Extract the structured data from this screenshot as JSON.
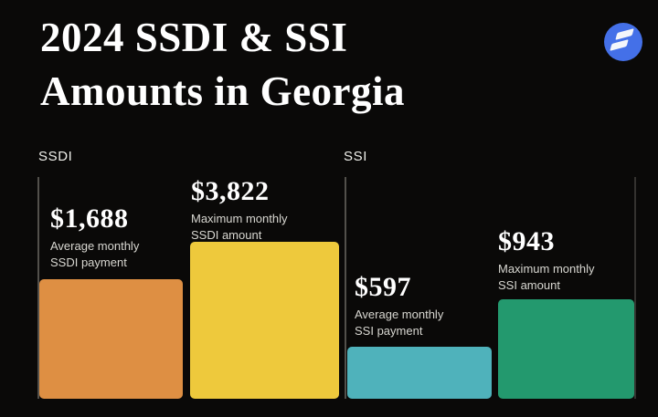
{
  "title": {
    "line1": "2024 SSDI & SSI",
    "line2": "Amounts in Georgia"
  },
  "colors": {
    "background": "#0A0908",
    "logo_blue": "#4470E8",
    "axis_line": "#52504B",
    "axis_line_right": "#34322F",
    "text_white": "#FFFFFF",
    "text_muted": "#D8D7D1"
  },
  "chart_data": {
    "type": "bar",
    "title": "2024 SSDI & SSI Amounts in Georgia",
    "legend": "none",
    "grid": false,
    "groups": [
      {
        "label": "SSDI",
        "bars": [
          {
            "value": 1688,
            "value_label": "$1,688",
            "description": [
              "Average monthly",
              "SSDI payment"
            ],
            "color": "#DE8F43"
          },
          {
            "value": 3822,
            "value_label": "$3,822",
            "description": [
              "Maximum monthly",
              "SSDI amount"
            ],
            "color": "#EEC93C"
          }
        ]
      },
      {
        "label": "SSI",
        "bars": [
          {
            "value": 597,
            "value_label": "$597",
            "description": [
              "Average monthly",
              "SSI payment"
            ],
            "color": "#4FB2BB"
          },
          {
            "value": 943,
            "value_label": "$943",
            "description": [
              "Maximum monthly",
              "SSI amount"
            ],
            "color": "#23996E"
          }
        ]
      }
    ]
  }
}
